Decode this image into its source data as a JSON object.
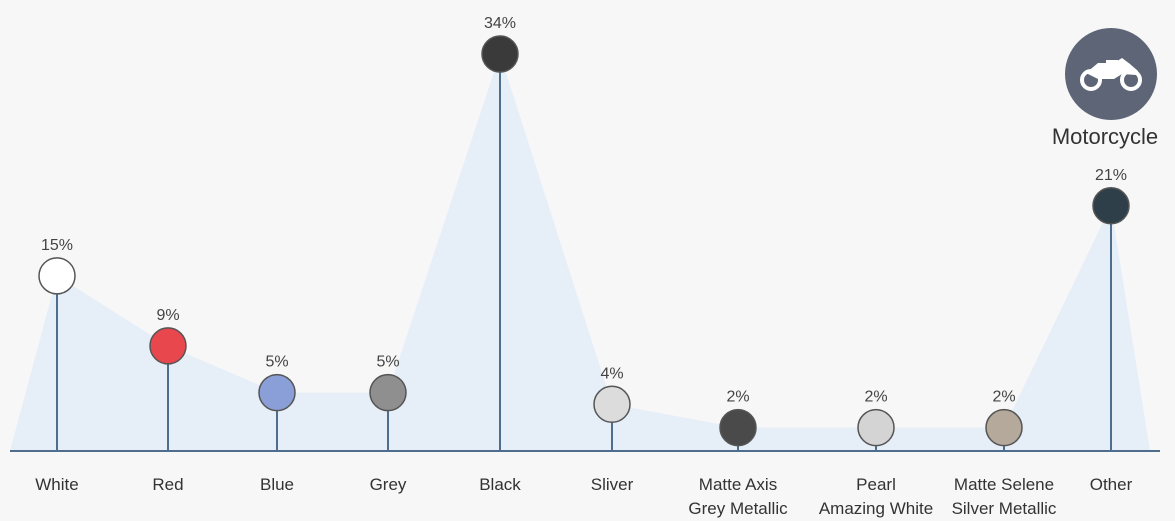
{
  "legend": {
    "label": "Motorcycle",
    "icon": "motorcycle-icon"
  },
  "chart_data": {
    "type": "lollipop-area",
    "unit": "%",
    "categories": [
      {
        "label": [
          "White"
        ],
        "value": 15,
        "color": "#ffffff"
      },
      {
        "label": [
          "Red"
        ],
        "value": 9,
        "color": "#e8474e"
      },
      {
        "label": [
          "Blue"
        ],
        "value": 5,
        "color": "#8a9fd8"
      },
      {
        "label": [
          "Grey"
        ],
        "value": 5,
        "color": "#8f8f8f"
      },
      {
        "label": [
          "Black"
        ],
        "value": 34,
        "color": "#3a3a3a"
      },
      {
        "label": [
          "Sliver"
        ],
        "value": 4,
        "color": "#dcdcdc"
      },
      {
        "label": [
          "Matte Axis",
          "Grey Metallic"
        ],
        "value": 2,
        "color": "#4a4a4a"
      },
      {
        "label": [
          "Pearl",
          "Amazing White"
        ],
        "value": 2,
        "color": "#d4d4d4"
      },
      {
        "label": [
          "Matte Selene",
          "Silver Metallic"
        ],
        "value": 2,
        "color": "#b5a99c"
      },
      {
        "label": [
          "Other"
        ],
        "value": 21,
        "color": "#2f3f4a"
      }
    ],
    "area_color": "#e6eef8",
    "stem_color": "#4f6d8c"
  }
}
